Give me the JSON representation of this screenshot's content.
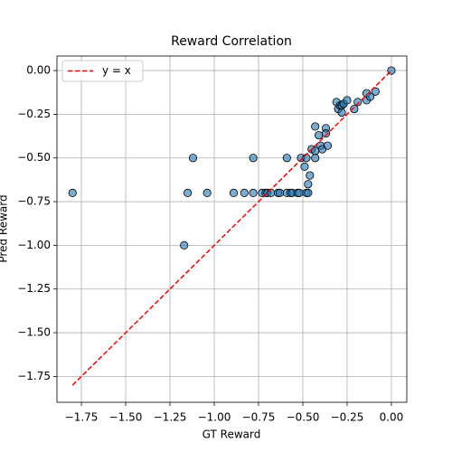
{
  "chart_data": {
    "type": "scatter",
    "title": "Reward Correlation",
    "xlabel": "GT Reward",
    "ylabel": "Pred Reward",
    "xlim": [
      -1.888,
      0.087
    ],
    "ylim": [
      -1.898,
      0.083
    ],
    "xticks": [
      {
        "value": -1.75,
        "label": "−1.75"
      },
      {
        "value": -1.5,
        "label": "−1.50"
      },
      {
        "value": -1.25,
        "label": "−1.25"
      },
      {
        "value": -1.0,
        "label": "−1.00"
      },
      {
        "value": -0.75,
        "label": "−0.75"
      },
      {
        "value": -0.5,
        "label": "−0.50"
      },
      {
        "value": -0.25,
        "label": "−0.25"
      },
      {
        "value": 0,
        "label": "0.00"
      }
    ],
    "yticks": [
      {
        "value": 0,
        "label": "0.00"
      },
      {
        "value": -0.25,
        "label": "−0.25"
      },
      {
        "value": -0.5,
        "label": "−0.50"
      },
      {
        "value": -0.75,
        "label": "−0.75"
      },
      {
        "value": -1.0,
        "label": "−1.00"
      },
      {
        "value": -1.25,
        "label": "−1.25"
      },
      {
        "value": -1.5,
        "label": "−1.50"
      },
      {
        "value": -1.75,
        "label": "−1.75"
      }
    ],
    "grid": true,
    "legend": "upper left",
    "color": "#1f77b4",
    "x": [
      -1.8,
      -1.17,
      -1.12,
      -1.15,
      -1.04,
      -0.89,
      -0.83,
      -0.78,
      -0.78,
      -0.73,
      -0.71,
      -0.7,
      -0.68,
      -0.64,
      -0.63,
      -0.59,
      -0.57,
      -0.56,
      -0.59,
      -0.53,
      -0.52,
      -0.48,
      -0.47,
      -0.51,
      -0.49,
      -0.47,
      -0.46,
      -0.48,
      -0.45,
      -0.43,
      -0.43,
      -0.43,
      -0.41,
      -0.4,
      -0.39,
      -0.37,
      -0.37,
      -0.36,
      -0.31,
      -0.3,
      -0.29,
      -0.28,
      -0.27,
      -0.28,
      -0.25,
      -0.21,
      -0.19,
      -0.14,
      -0.14,
      -0.12,
      -0.09,
      0
    ],
    "values": [
      -0.7,
      -1.0,
      -0.5,
      -0.7,
      -0.7,
      -0.7,
      -0.7,
      -0.7,
      -0.5,
      -0.7,
      -0.7,
      -0.7,
      -0.7,
      -0.7,
      -0.7,
      -0.7,
      -0.7,
      -0.7,
      -0.5,
      -0.7,
      -0.7,
      -0.7,
      -0.7,
      -0.5,
      -0.55,
      -0.65,
      -0.6,
      -0.5,
      -0.45,
      -0.46,
      -0.5,
      -0.32,
      -0.37,
      -0.43,
      -0.45,
      -0.33,
      -0.36,
      -0.43,
      -0.18,
      -0.22,
      -0.2,
      -0.2,
      -0.19,
      -0.24,
      -0.17,
      -0.22,
      -0.18,
      -0.13,
      -0.17,
      -0.15,
      -0.12,
      0
    ],
    "series": [
      {
        "name": "y = x",
        "color": "#ff0000",
        "x": [
          -1.8,
          0
        ],
        "values": [
          -1.8,
          0
        ]
      }
    ]
  }
}
